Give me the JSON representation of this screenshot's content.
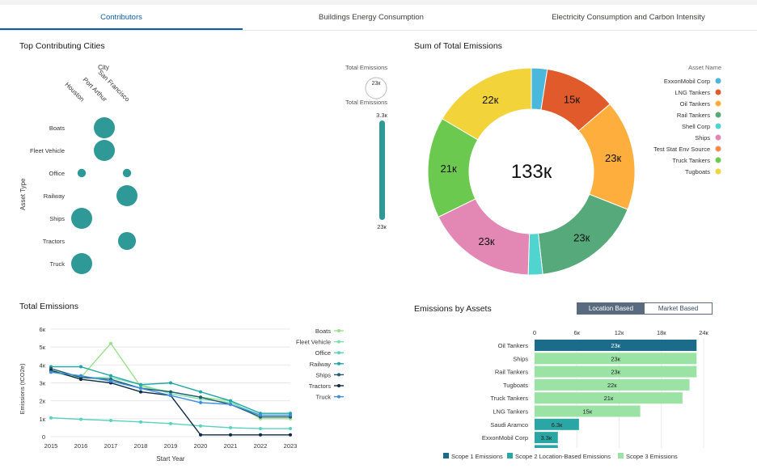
{
  "tabs": [
    {
      "label": "Contributors",
      "active": true
    },
    {
      "label": "Buildings Energy Consumption",
      "active": false
    },
    {
      "label": "Electricity Consumption and Carbon Intensity",
      "active": false
    }
  ],
  "panels": {
    "cities": {
      "title": "Top Contributing Cities",
      "column_axis_label": "City",
      "row_axis_label": "Asset Type",
      "legend_title_1": "Total Emissions",
      "legend_bubble_label": "23к",
      "legend_title_2": "Total Emissions",
      "legend_max": "3.3к",
      "legend_min": "23к"
    },
    "donut": {
      "title": "Sum of Total Emissions",
      "legend_title": "Asset Name",
      "center_label": "133к"
    },
    "line": {
      "title": "Total Emissions"
    },
    "assets": {
      "title": "Emissions by Assets",
      "toggle_on": "Location Based",
      "toggle_off": "Market Based"
    }
  },
  "colors": {
    "accent": "#0b5cab",
    "teal_bubble": "#2e9996"
  },
  "chart_data": [
    {
      "type": "scatter",
      "title": "Top Contributing Cities",
      "xlabel": "City",
      "ylabel": "Asset Type",
      "x_categories": [
        "Houston",
        "Port Arthur",
        "San Francisco"
      ],
      "y_categories": [
        "Boats",
        "Fleet Vehicle",
        "Office",
        "Railway",
        "Ships",
        "Tractors",
        "Truck"
      ],
      "points": [
        {
          "x": "Port Arthur",
          "y": "Boats",
          "size": 1.0
        },
        {
          "x": "Port Arthur",
          "y": "Fleet Vehicle",
          "size": 1.0
        },
        {
          "x": "Houston",
          "y": "Office",
          "size": 0.4
        },
        {
          "x": "San Francisco",
          "y": "Office",
          "size": 0.4
        },
        {
          "x": "San Francisco",
          "y": "Railway",
          "size": 1.0
        },
        {
          "x": "Houston",
          "y": "Ships",
          "size": 1.0
        },
        {
          "x": "San Francisco",
          "y": "Tractors",
          "size": 0.85
        },
        {
          "x": "Houston",
          "y": "Truck",
          "size": 1.0
        }
      ],
      "legend": {
        "title": "Total Emissions",
        "bubble_label": "23к",
        "range_max": "3.3к",
        "range_min": "23к"
      }
    },
    {
      "type": "pie",
      "title": "Sum of Total Emissions",
      "legend_title": "Asset Name",
      "center_label": "133к",
      "slices": [
        {
          "name": "ExxonMobil Corp",
          "value": 3.3,
          "label": "",
          "color": "#4ab8dc"
        },
        {
          "name": "LNG Tankers",
          "value": 15,
          "label": "15к",
          "color": "#e05a2b"
        },
        {
          "name": "Oil Tankers",
          "value": 23,
          "label": "23к",
          "color": "#feae3d"
        },
        {
          "name": "Rail Tankers",
          "value": 23,
          "label": "23к",
          "color": "#55a97b"
        },
        {
          "name": "Shell Corp",
          "value": 3,
          "label": "",
          "color": "#4fd4d0"
        },
        {
          "name": "Ships",
          "value": 23,
          "label": "23к",
          "color": "#e388b4"
        },
        {
          "name": "Test Stat Env Source",
          "value": 0,
          "label": "",
          "color": "#f08e50"
        },
        {
          "name": "Truck Tankers",
          "value": 21,
          "label": "21к",
          "color": "#6cc950"
        },
        {
          "name": "Tugboats",
          "value": 22,
          "label": "22к",
          "color": "#f3d33a"
        }
      ]
    },
    {
      "type": "line",
      "title": "Total Emissions",
      "xlabel": "Start Year",
      "ylabel": "Emissions (tCO2e)",
      "x": [
        2015,
        2016,
        2017,
        2018,
        2019,
        2020,
        2021,
        2022,
        2023
      ],
      "ylim": [
        0,
        6000
      ],
      "ytick_labels": [
        "0",
        "1к",
        "2к",
        "3к",
        "4к",
        "5к",
        "6к"
      ],
      "series": [
        {
          "name": "Boats",
          "color": "#9be08c",
          "values": [
            3600,
            3300,
            5200,
            2800,
            2500,
            2200,
            2000,
            1000,
            1000
          ]
        },
        {
          "name": "Fleet Vehicle",
          "color": "#7fe0b0",
          "values": [
            3700,
            3300,
            3300,
            2900,
            2400,
            2100,
            1900,
            1200,
            1200
          ]
        },
        {
          "name": "Office",
          "color": "#58d1c1",
          "values": [
            1050,
            970,
            900,
            820,
            730,
            600,
            500,
            450,
            450
          ]
        },
        {
          "name": "Railway",
          "color": "#21a6a6",
          "values": [
            3900,
            3900,
            3400,
            2900,
            3000,
            2500,
            2000,
            1300,
            1300
          ]
        },
        {
          "name": "Ships",
          "color": "#1c5a6e",
          "values": [
            3800,
            3300,
            3200,
            2700,
            2500,
            2200,
            1800,
            1100,
            1100
          ]
        },
        {
          "name": "Tractors",
          "color": "#0e2a44",
          "values": [
            3700,
            3200,
            3000,
            2500,
            2300,
            100,
            100,
            100,
            100
          ]
        },
        {
          "name": "Truck",
          "color": "#3f8de0",
          "values": [
            3600,
            3400,
            3100,
            2700,
            2300,
            1900,
            1800,
            1200,
            1200
          ]
        }
      ]
    },
    {
      "type": "bar",
      "title": "Emissions by Assets",
      "orientation": "horizontal",
      "xlim": [
        0,
        24000
      ],
      "xtick_labels": [
        "0",
        "6к",
        "12к",
        "18к",
        "24к"
      ],
      "categories": [
        "Oil Tankers",
        "Ships",
        "Rail Tankers",
        "Tugboats",
        "Truck Tankers",
        "LNG Tankers",
        "Saudi Aramco",
        "ExxonMobil Corp",
        ""
      ],
      "values": [
        23000,
        23000,
        23000,
        22000,
        21000,
        15000,
        6300,
        3300,
        3300
      ],
      "value_labels": [
        "23к",
        "23к",
        "23к",
        "22к",
        "21к",
        "15к",
        "6.3к",
        "3.3к",
        ""
      ],
      "bar_colors": [
        "#1b6b8a",
        "#9be3a4",
        "#9be3a4",
        "#9be3a4",
        "#9be3a4",
        "#9be3a4",
        "#2aa7a4",
        "#2aa7a4",
        "#2aa7a4"
      ],
      "legend": [
        {
          "name": "Scope 1 Emissions",
          "color": "#1b6b8a"
        },
        {
          "name": "Scope 2 Location-Based Emissions",
          "color": "#2aa7a4"
        },
        {
          "name": "Scope 3 Emissions",
          "color": "#9be3a4"
        }
      ]
    }
  ]
}
